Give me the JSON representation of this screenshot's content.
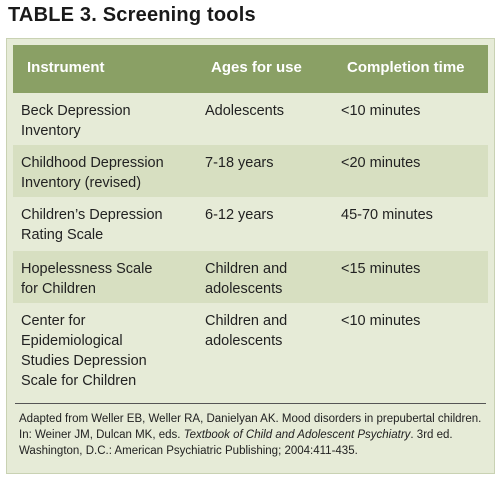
{
  "title": "TABLE 3. Screening tools",
  "columns": [
    "Instrument",
    "Ages for use",
    "Completion time"
  ],
  "rows": [
    {
      "instrument": "Beck Depression\nInventory",
      "ages": "Adolescents",
      "time": "<10 minutes"
    },
    {
      "instrument": "Childhood Depression\nInventory (revised)",
      "ages": "7-18 years",
      "time": "<20 minutes"
    },
    {
      "instrument": "Children’s Depression\nRating Scale",
      "ages": "6-12 years",
      "time": "45-70 minutes"
    },
    {
      "instrument": "Hopelessness Scale\nfor Children",
      "ages": "Children and\nadolescents",
      "time": "<15 minutes"
    },
    {
      "instrument": "Center for\nEpidemiological\nStudies Depression\nScale for Children",
      "ages": "Children and\nadolescents",
      "time": "<10 minutes"
    }
  ],
  "footnote": {
    "before": "Adapted from Weller EB, Weller RA, Danielyan AK. Mood disorders in prepubertal children. In: Weiner JM, Dulcan MK, eds. ",
    "book": "Textbook of Child and Adolescent Psychiatry",
    "after": ". 3rd ed. Washington, D.C.: American Psychiatric Publishing; 2004:411-435."
  },
  "colors": {
    "header": "#8aa065",
    "panel": "#e6ebd7",
    "shaded_row": "#d7dfc1"
  }
}
